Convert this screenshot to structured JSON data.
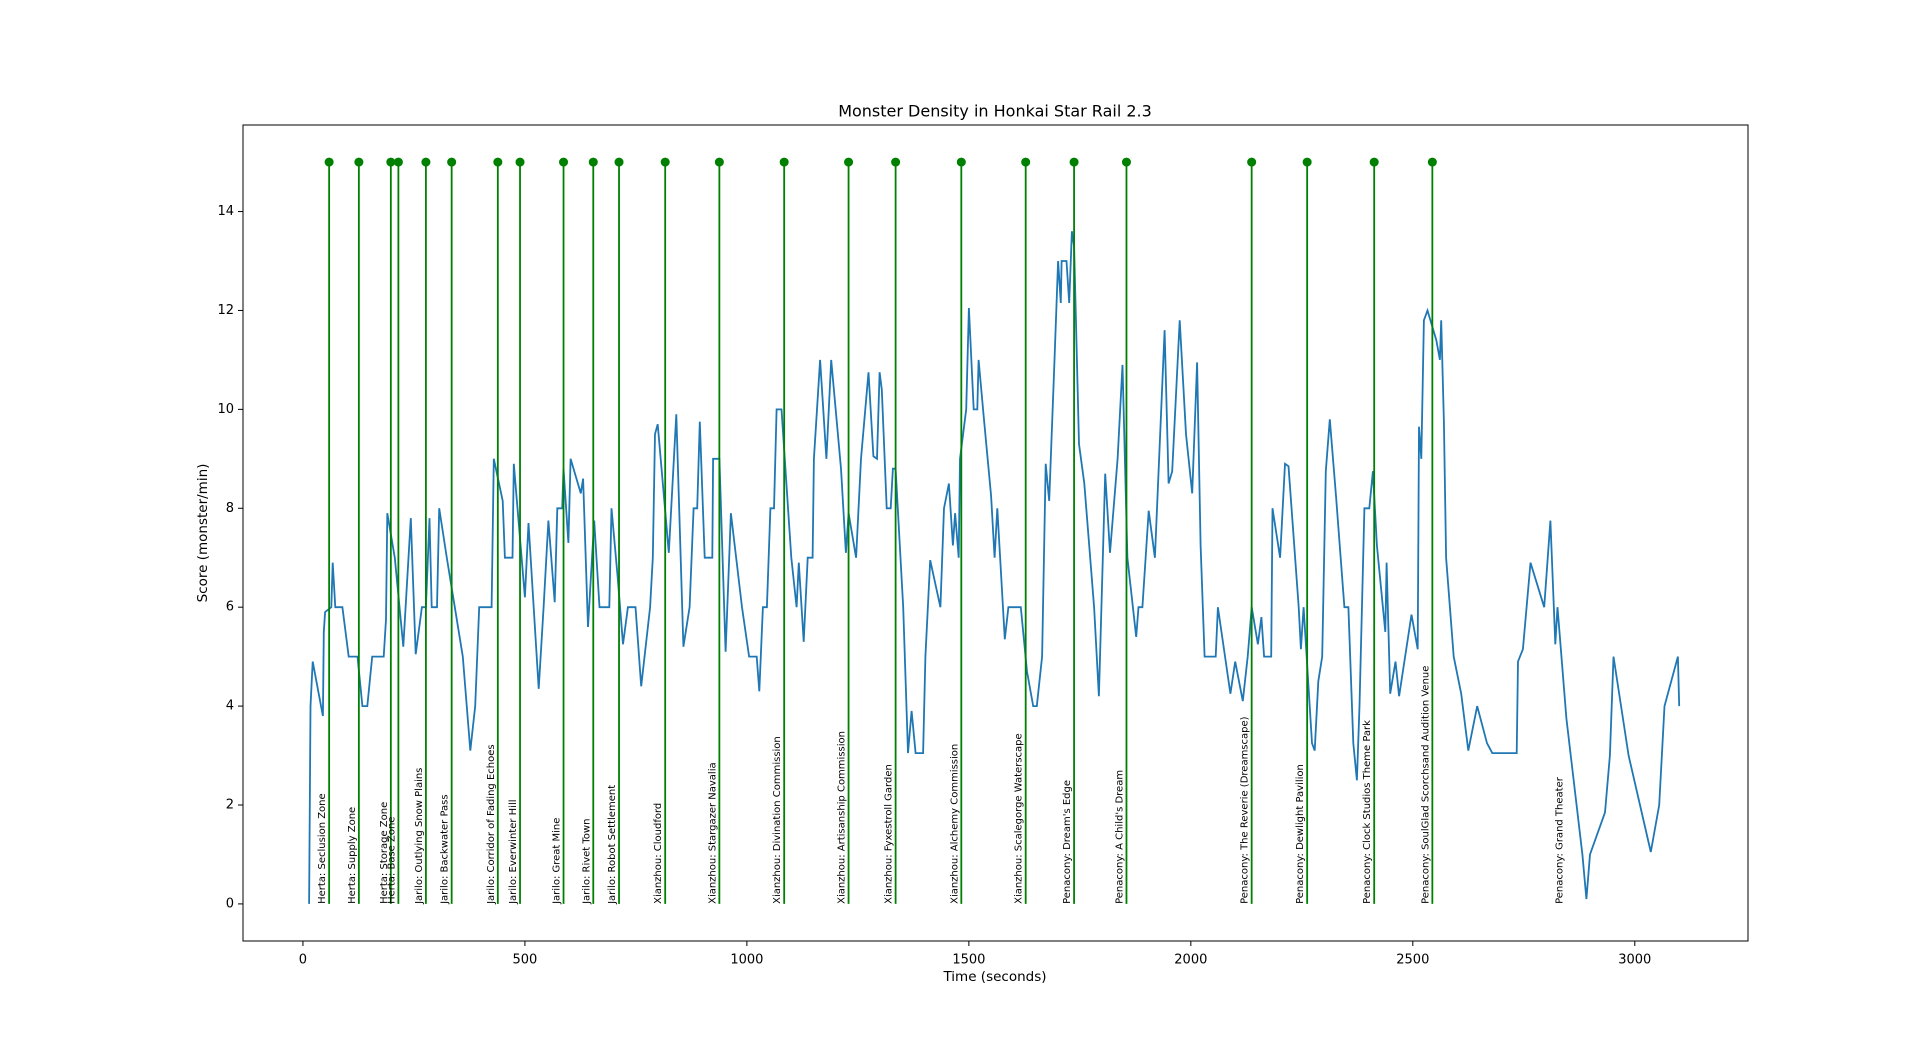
{
  "chart_data": {
    "type": "line",
    "title": "Monster Density in Honkai Star Rail 2.3",
    "x_label": "Time (seconds)",
    "y_label": "Score (monster/min)",
    "xlim": [
      -135,
      3255
    ],
    "ylim": [
      -0.75,
      15.75
    ],
    "xticks": [
      0,
      500,
      1000,
      1500,
      2000,
      2500,
      3000
    ],
    "yticks": [
      0,
      2,
      4,
      6,
      8,
      10,
      12,
      14
    ],
    "x": [
      14,
      17,
      22,
      45,
      47,
      50,
      64,
      67,
      73,
      89,
      103,
      123,
      134,
      145,
      156,
      182,
      187,
      190,
      207,
      226,
      243,
      254,
      268,
      277,
      285,
      290,
      302,
      307,
      324,
      360,
      377,
      388,
      397,
      425,
      430,
      450,
      455,
      472,
      475,
      500,
      508,
      531,
      542,
      553,
      567,
      573,
      584,
      587,
      598,
      603,
      626,
      631,
      642,
      656,
      668,
      690,
      695,
      709,
      721,
      732,
      749,
      762,
      782,
      788,
      793,
      799,
      824,
      841,
      857,
      871,
      880,
      888,
      894,
      905,
      922,
      924,
      938,
      952,
      964,
      989,
      1005,
      1022,
      1028,
      1036,
      1045,
      1053,
      1061,
      1067,
      1078,
      1100,
      1112,
      1117,
      1128,
      1137,
      1148,
      1151,
      1165,
      1179,
      1190,
      1212,
      1223,
      1229,
      1246,
      1257,
      1274,
      1285,
      1293,
      1299,
      1304,
      1315,
      1324,
      1329,
      1335,
      1352,
      1363,
      1371,
      1380,
      1397,
      1402,
      1413,
      1436,
      1444,
      1455,
      1464,
      1469,
      1477,
      1480,
      1494,
      1500,
      1511,
      1519,
      1522,
      1533,
      1550,
      1558,
      1564,
      1581,
      1589,
      1617,
      1631,
      1645,
      1653,
      1665,
      1673,
      1681,
      1693,
      1701,
      1707,
      1709,
      1720,
      1726,
      1732,
      1737,
      1748,
      1760,
      1782,
      1793,
      1807,
      1818,
      1835,
      1846,
      1857,
      1877,
      1882,
      1891,
      1905,
      1919,
      1941,
      1950,
      1958,
      1975,
      1989,
      2003,
      2014,
      2022,
      2031,
      2056,
      2061,
      2089,
      2100,
      2117,
      2128,
      2137,
      2151,
      2159,
      2165,
      2181,
      2184,
      2201,
      2212,
      2220,
      2243,
      2248,
      2254,
      2273,
      2279,
      2287,
      2296,
      2304,
      2313,
      2327,
      2346,
      2355,
      2366,
      2374,
      2380,
      2391,
      2402,
      2410,
      2419,
      2438,
      2441,
      2449,
      2461,
      2469,
      2497,
      2511,
      2514,
      2519,
      2525,
      2533,
      2553,
      2561,
      2564,
      2570,
      2575,
      2592,
      2609,
      2625,
      2645,
      2667,
      2679,
      2734,
      2737,
      2748,
      2765,
      2796,
      2810,
      2821,
      2826,
      2846,
      2882,
      2891,
      2899,
      2933,
      2944,
      2952,
      2986,
      3036,
      3055,
      3067,
      3097,
      3100
    ],
    "series": [
      {
        "color": "#1f77b4",
        "values": [
          0,
          4,
          4.9,
          3.8,
          5.5,
          5.9,
          6,
          6.9,
          6,
          6,
          5,
          5,
          4,
          4,
          5,
          5,
          5.75,
          7.9,
          7,
          5.2,
          7.8,
          5.05,
          6,
          6,
          7.8,
          6,
          6,
          8,
          7,
          5,
          3.1,
          4,
          6,
          6,
          9,
          8.15,
          7,
          7,
          8.9,
          6.2,
          7.7,
          4.35,
          6,
          7.75,
          6.1,
          8,
          8,
          8.8,
          7.3,
          9,
          8.3,
          8.6,
          5.6,
          7.75,
          6,
          6,
          8,
          6.6,
          5.25,
          6,
          6,
          4.4,
          6,
          7,
          9.5,
          9.7,
          7.1,
          9.9,
          5.2,
          6,
          8,
          8,
          9.75,
          7,
          7,
          9,
          9,
          5.1,
          7.9,
          6,
          5,
          5,
          4.3,
          6,
          6,
          8,
          8,
          10,
          10,
          7,
          6,
          6.9,
          5.3,
          7,
          7,
          9,
          11,
          9,
          11,
          8.8,
          7.1,
          7.9,
          7,
          9,
          10.75,
          9.05,
          9,
          10.75,
          10.4,
          8,
          8,
          8.8,
          8.8,
          6,
          3.05,
          3.9,
          3.05,
          3.05,
          5,
          6.95,
          6,
          8,
          8.5,
          7.25,
          7.9,
          7,
          9,
          10,
          12.05,
          10,
          10,
          11,
          9.9,
          8.25,
          7,
          8,
          5.35,
          6,
          6,
          4.7,
          4,
          4,
          5,
          8.9,
          8.15,
          11,
          13,
          12.15,
          13,
          13,
          12.15,
          13.6,
          13.3,
          9.3,
          8.5,
          6,
          4.2,
          8.7,
          7.1,
          9,
          10.9,
          7,
          5.4,
          6,
          6,
          7.95,
          7,
          11.6,
          8.5,
          8.75,
          11.8,
          9.5,
          8.3,
          10.95,
          7.25,
          5,
          5,
          6,
          4.25,
          4.9,
          4.1,
          5,
          6,
          5.25,
          5.8,
          5,
          5,
          8,
          7,
          8.9,
          8.85,
          6,
          5.15,
          6,
          3.25,
          3.1,
          4.5,
          5,
          8.75,
          9.8,
          8.25,
          6,
          6,
          3.25,
          2.5,
          4,
          8,
          8,
          8.75,
          7.25,
          5.5,
          6.9,
          4.25,
          4.9,
          4.2,
          5.85,
          5.15,
          9.65,
          9,
          11.8,
          12,
          11.4,
          11,
          11.8,
          9.75,
          7,
          5,
          4.25,
          3.1,
          4,
          3.25,
          3.05,
          3.05,
          4.9,
          5.15,
          6.9,
          6,
          7.75,
          5.25,
          6,
          3.75,
          1,
          0.1,
          1,
          1.85,
          3,
          5,
          3,
          1.05,
          2,
          4,
          5,
          4
        ]
      }
    ],
    "stems": {
      "color": "#008000",
      "x": [
        59,
        126,
        198,
        215,
        277,
        335,
        439,
        489,
        587,
        654,
        712,
        816,
        938,
        1084,
        1229,
        1335,
        1483,
        1628,
        1737,
        1855,
        2137,
        2262,
        2413,
        2544
      ],
      "values": [
        15,
        15,
        15,
        15,
        15,
        15,
        15,
        15,
        15,
        15,
        15,
        15,
        15,
        15,
        15,
        15,
        15,
        15,
        15,
        15,
        15,
        15,
        15,
        15
      ]
    },
    "annotations": [
      {
        "x": 59,
        "text": "Herta: Seclusion Zone"
      },
      {
        "x": 126,
        "text": "Herta: Supply Zone"
      },
      {
        "x": 198,
        "text": "Herta: Storage Zone"
      },
      {
        "x": 215,
        "text": "Herta: Base Zone"
      },
      {
        "x": 277,
        "text": "Jarilo: Outlying Snow Plains"
      },
      {
        "x": 335,
        "text": "Jarilo: Backwater Pass"
      },
      {
        "x": 439,
        "text": "Jarilo: Corridor of Fading Echoes"
      },
      {
        "x": 489,
        "text": "Jarilo: Everwinter Hill"
      },
      {
        "x": 587,
        "text": "Jarilo: Great Mine"
      },
      {
        "x": 654,
        "text": "Jarilo: Rivet Town"
      },
      {
        "x": 712,
        "text": "Jarilo: Robot Settlement"
      },
      {
        "x": 816,
        "text": "Xianzhou: Cloudford"
      },
      {
        "x": 938,
        "text": "Xianzhou: Stargazer Navalia"
      },
      {
        "x": 1084,
        "text": "Xianzhou: Divination Commission"
      },
      {
        "x": 1229,
        "text": "Xianzhou: Artisanship Commission"
      },
      {
        "x": 1335,
        "text": "Xianzhou: Fyxestroll Garden"
      },
      {
        "x": 1483,
        "text": "Xianzhou: Alchemy Commission"
      },
      {
        "x": 1628,
        "text": "Xianzhou: Scalegorge Waterscape"
      },
      {
        "x": 1737,
        "text": "Penacony: Dream's Edge"
      },
      {
        "x": 1855,
        "text": "Penacony: A Child's Dream"
      },
      {
        "x": 2137,
        "text": "Penacony: The Reverie (Dreamscape)"
      },
      {
        "x": 2262,
        "text": "Penacony: Dewlight Pavilion"
      },
      {
        "x": 2413,
        "text": "Penacony: Clock Studios Theme Park"
      },
      {
        "x": 2544,
        "text": "Penacony: SoulGlad Scorchsand Audition Venue"
      },
      {
        "x": 2846,
        "text": "Penacony: Grand Theater"
      }
    ]
  }
}
